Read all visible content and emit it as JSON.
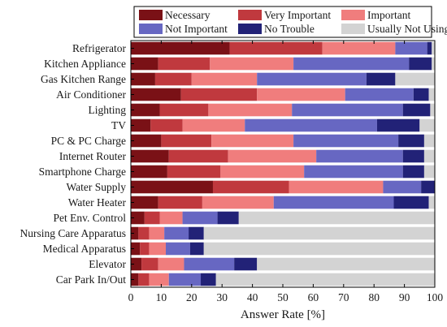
{
  "chart_data": {
    "type": "bar",
    "orientation": "horizontal",
    "stacked": true,
    "xlabel": "Answer Rate [%]",
    "ylabel": "",
    "title": "",
    "xlim": [
      0,
      100
    ],
    "xticks": [
      0,
      10,
      20,
      30,
      40,
      50,
      60,
      70,
      80,
      90,
      100
    ],
    "grid": false,
    "legend_position": "top",
    "categories": [
      "Refrigerator",
      "Kitchen Appliance",
      "Gas Kitchen Range",
      "Air Conditioner",
      "Lighting",
      "TV",
      "PC & PC Charge",
      "Internet Router",
      "Smartphone Charge",
      "Water Supply",
      "Water Heater",
      "Pet Env. Control",
      "Nursing Care Apparatus",
      "Medical Apparatus",
      "Elevator",
      "Car Park In/Out"
    ],
    "series": [
      {
        "name": "Necessary",
        "color": "#7a1116",
        "values": [
          32.5,
          9,
          8,
          16.5,
          9.5,
          6.5,
          10,
          12.5,
          12,
          27,
          9,
          4.5,
          2.5,
          3,
          3.5,
          2.5
        ]
      },
      {
        "name": "Very Important",
        "color": "#c0393e",
        "values": [
          30.5,
          17,
          12,
          25,
          16,
          10.5,
          16.5,
          19.5,
          17.5,
          25,
          14.5,
          5,
          3.5,
          3,
          5.5,
          3.5
        ]
      },
      {
        "name": "Important",
        "color": "#f07d7d",
        "values": [
          24,
          27.5,
          21.5,
          29,
          27.5,
          20.5,
          27,
          29,
          27.5,
          31,
          23.5,
          7.5,
          5,
          5.5,
          8.5,
          6.5
        ]
      },
      {
        "name": "Not Important",
        "color": "#6767c2",
        "values": [
          10.5,
          38,
          36,
          22.5,
          36.5,
          43.5,
          34.5,
          28.5,
          32.5,
          12.5,
          39.5,
          11.5,
          8,
          8,
          16.5,
          10.5
        ]
      },
      {
        "name": "No Trouble",
        "color": "#222277",
        "values": [
          1.5,
          7.5,
          9.5,
          5,
          9,
          14,
          8.5,
          7,
          7,
          4.5,
          11.5,
          7,
          5,
          4.5,
          7.5,
          5
        ]
      },
      {
        "name": "Usually Not Using",
        "color": "#d3d3d3",
        "values": [
          1,
          1,
          13,
          2,
          1.5,
          5,
          3.5,
          3.5,
          3.5,
          0,
          2,
          64.5,
          76,
          76,
          58.5,
          72
        ]
      }
    ]
  }
}
